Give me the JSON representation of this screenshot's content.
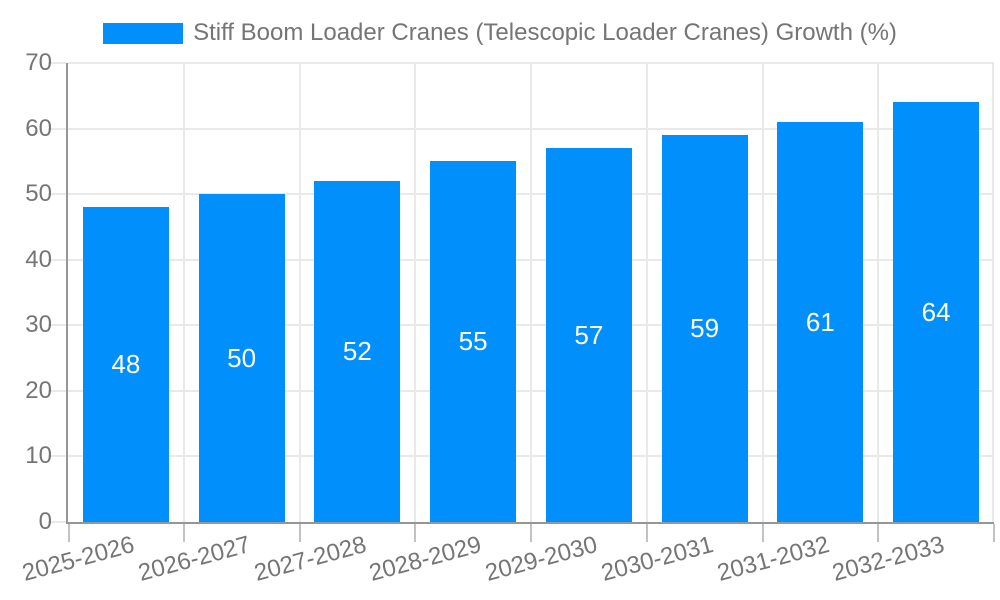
{
  "chart_data": {
    "type": "bar",
    "title": "Stiff Boom Loader Cranes (Telescopic Loader Cranes) Growth (%)",
    "categories": [
      "2025-2026",
      "2026-2027",
      "2027-2028",
      "2028-2029",
      "2029-2030",
      "2030-2031",
      "2031-2032",
      "2032-2033"
    ],
    "series": [
      {
        "name": "Stiff Boom Loader Cranes (Telescopic Loader Cranes) Growth (%)",
        "values": [
          48,
          50,
          52,
          55,
          57,
          59,
          61,
          64
        ]
      }
    ],
    "xlabel": "",
    "ylabel": "",
    "ylim": [
      0,
      70
    ],
    "yticks": [
      0,
      10,
      20,
      30,
      40,
      50,
      60,
      70
    ],
    "grid": true,
    "legend_position": "top",
    "value_labels_shown": true,
    "colors": {
      "bar": "#008FFB",
      "text": "#757575",
      "axis_line": "#969696",
      "gridline": "#e9e9e9",
      "tick": "#c2c2c2",
      "value_label": "#ffffff",
      "background": "#ffffff"
    }
  }
}
